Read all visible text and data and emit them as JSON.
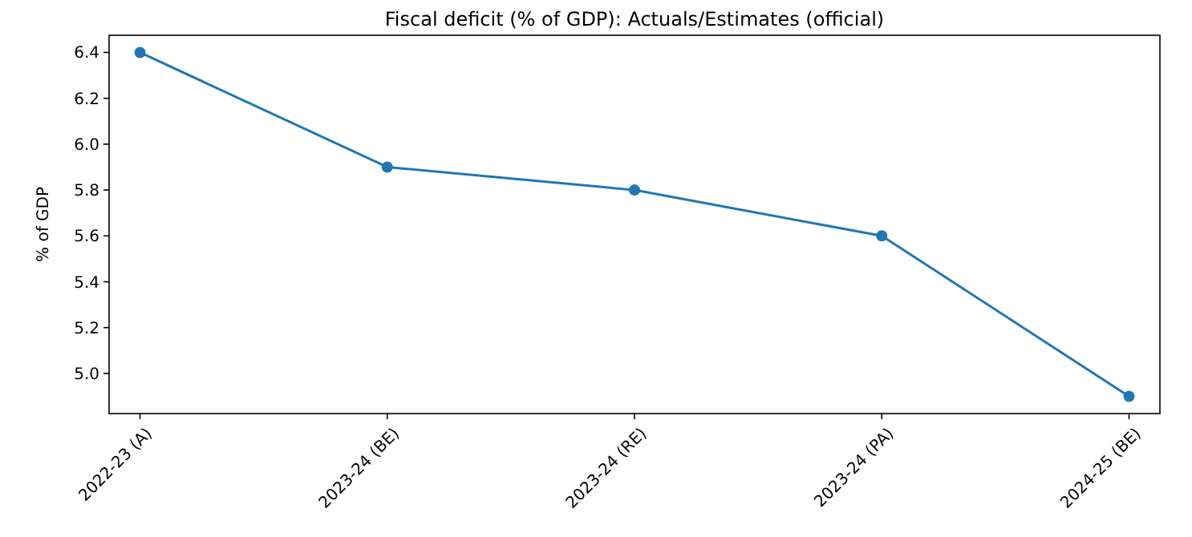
{
  "chart_data": {
    "type": "line",
    "title": "Fiscal deficit (% of GDP): Actuals/Estimates (official)",
    "ylabel": "% of GDP",
    "categories": [
      "2022-23 (A)",
      "2023-24 (BE)",
      "2023-24 (RE)",
      "2023-24 (PA)",
      "2024-25 (BE)"
    ],
    "series": [
      {
        "color": "#1f77b4",
        "values": [
          6.4,
          5.9,
          5.8,
          5.6,
          4.9
        ]
      }
    ],
    "ylim": [
      4.825,
      6.475
    ],
    "yticks": [
      {
        "value": 5.0,
        "label": "5.0"
      },
      {
        "value": 5.2,
        "label": "5.2"
      },
      {
        "value": 5.4,
        "label": "5.4"
      },
      {
        "value": 5.6,
        "label": "5.6"
      },
      {
        "value": 5.8,
        "label": "5.8"
      },
      {
        "value": 6.0,
        "label": "6.0"
      },
      {
        "value": 6.2,
        "label": "6.2"
      },
      {
        "value": 6.4,
        "label": "6.4"
      }
    ],
    "grid": false,
    "marker": "circle",
    "line_style": "solid"
  }
}
